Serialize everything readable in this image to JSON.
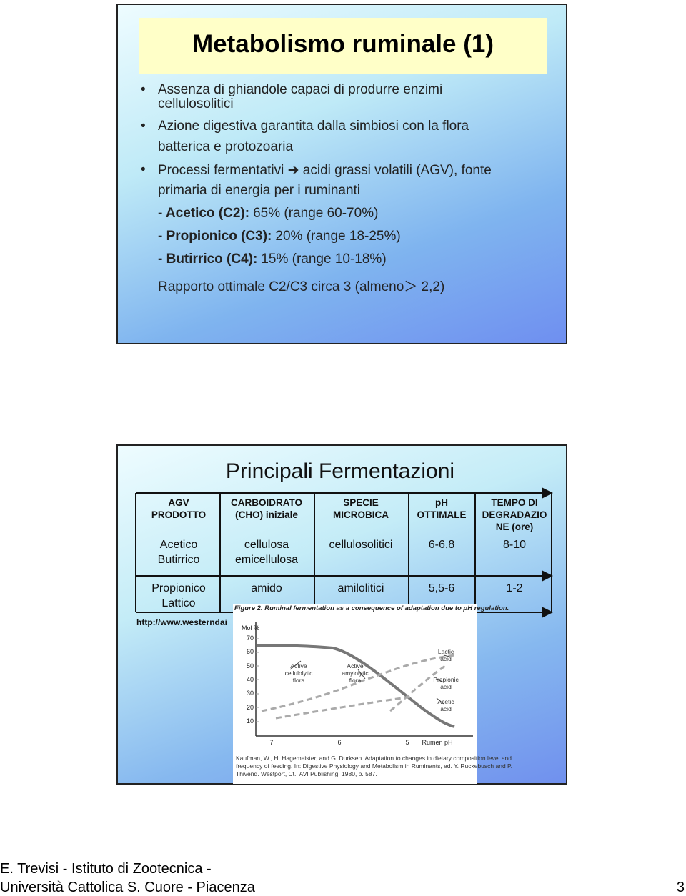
{
  "slide1": {
    "title": "Metabolismo ruminale (1)",
    "bullets": [
      [
        "Assenza di ghiandole capaci di produrre enzimi",
        "cellulosolitici"
      ],
      [
        "Azione digestiva garantita dalla simbiosi con la flora",
        "batterica e protozoaria"
      ],
      [
        "Processi fermentativi ➔ acidi grassi volatili (AGV), fonte",
        "primaria di energia per i ruminanti"
      ]
    ],
    "items": [
      {
        "label": "- Acetico (C2):",
        "text": "65% (range 60-70%)"
      },
      {
        "label": "- Propionico (C3):",
        "text": "20% (range 18-25%)"
      },
      {
        "label": "- Butirrico (C4):",
        "text": "15% (range 10-18%)"
      }
    ],
    "note": "Rapporto ottimale C2/C3 circa 3 (almeno＞ 2,2)"
  },
  "slide2": {
    "title": "Principali Fermentazioni",
    "table": {
      "header": [
        [
          "AGV",
          "PRODOTTO"
        ],
        [
          "CARBOIDRATO",
          "(CHO) iniziale"
        ],
        [
          "SPECIE",
          "MICROBICA"
        ],
        [
          "pH",
          "OTTIMALE"
        ],
        [
          "TEMPO DI",
          "DEGRADAZIO",
          "NE (ore)"
        ]
      ],
      "rows": [
        [
          [
            "Acetico",
            "Butirrico"
          ],
          [
            "cellulosa",
            "emicellulosa"
          ],
          [
            "cellulosolitici"
          ],
          [
            "6-6,8"
          ],
          [
            "8-10"
          ]
        ],
        [
          [
            "Propionico",
            "Lattico"
          ],
          [
            "amido"
          ],
          [
            "amilolitici"
          ],
          [
            "5,5-6"
          ],
          [
            "1-2"
          ]
        ]
      ]
    },
    "source": "http://www.westerndai",
    "figure": {
      "caption": "Figure 2. Ruminal fermentation as a consequence of adaptation due to pH regulation.",
      "y_label": "Mol %",
      "y_ticks": [
        "70",
        "60",
        "50",
        "40",
        "30",
        "20",
        "10"
      ],
      "x_ticks": [
        "7",
        "6",
        "5"
      ],
      "x_label": "Rumen pH",
      "labels": [
        [
          "Active",
          "cellulolytic",
          "flora"
        ],
        [
          "Active",
          "amylolytic",
          "flora"
        ],
        [
          "Lactic",
          "acid"
        ],
        [
          "Propionic",
          "acid"
        ],
        [
          "Acetic",
          "acid"
        ]
      ],
      "citation": [
        "Kaufman, W., H. Hagemeister, and G. Durksen. Adaptation to changes in dietary composition level and",
        "frequency of feeding. In: Digestive Physiology and Metabolism in Ruminants, ed. Y. Ruckebusch and P.",
        "Thivend. Westport, Ct.: AVI Publishing, 1980, p. 587."
      ]
    }
  },
  "footer": {
    "lines": [
      "E. Trevisi - Istituto di Zootecnica -",
      "Università Cattolica S. Cuore - Piacenza"
    ],
    "page": "3"
  }
}
